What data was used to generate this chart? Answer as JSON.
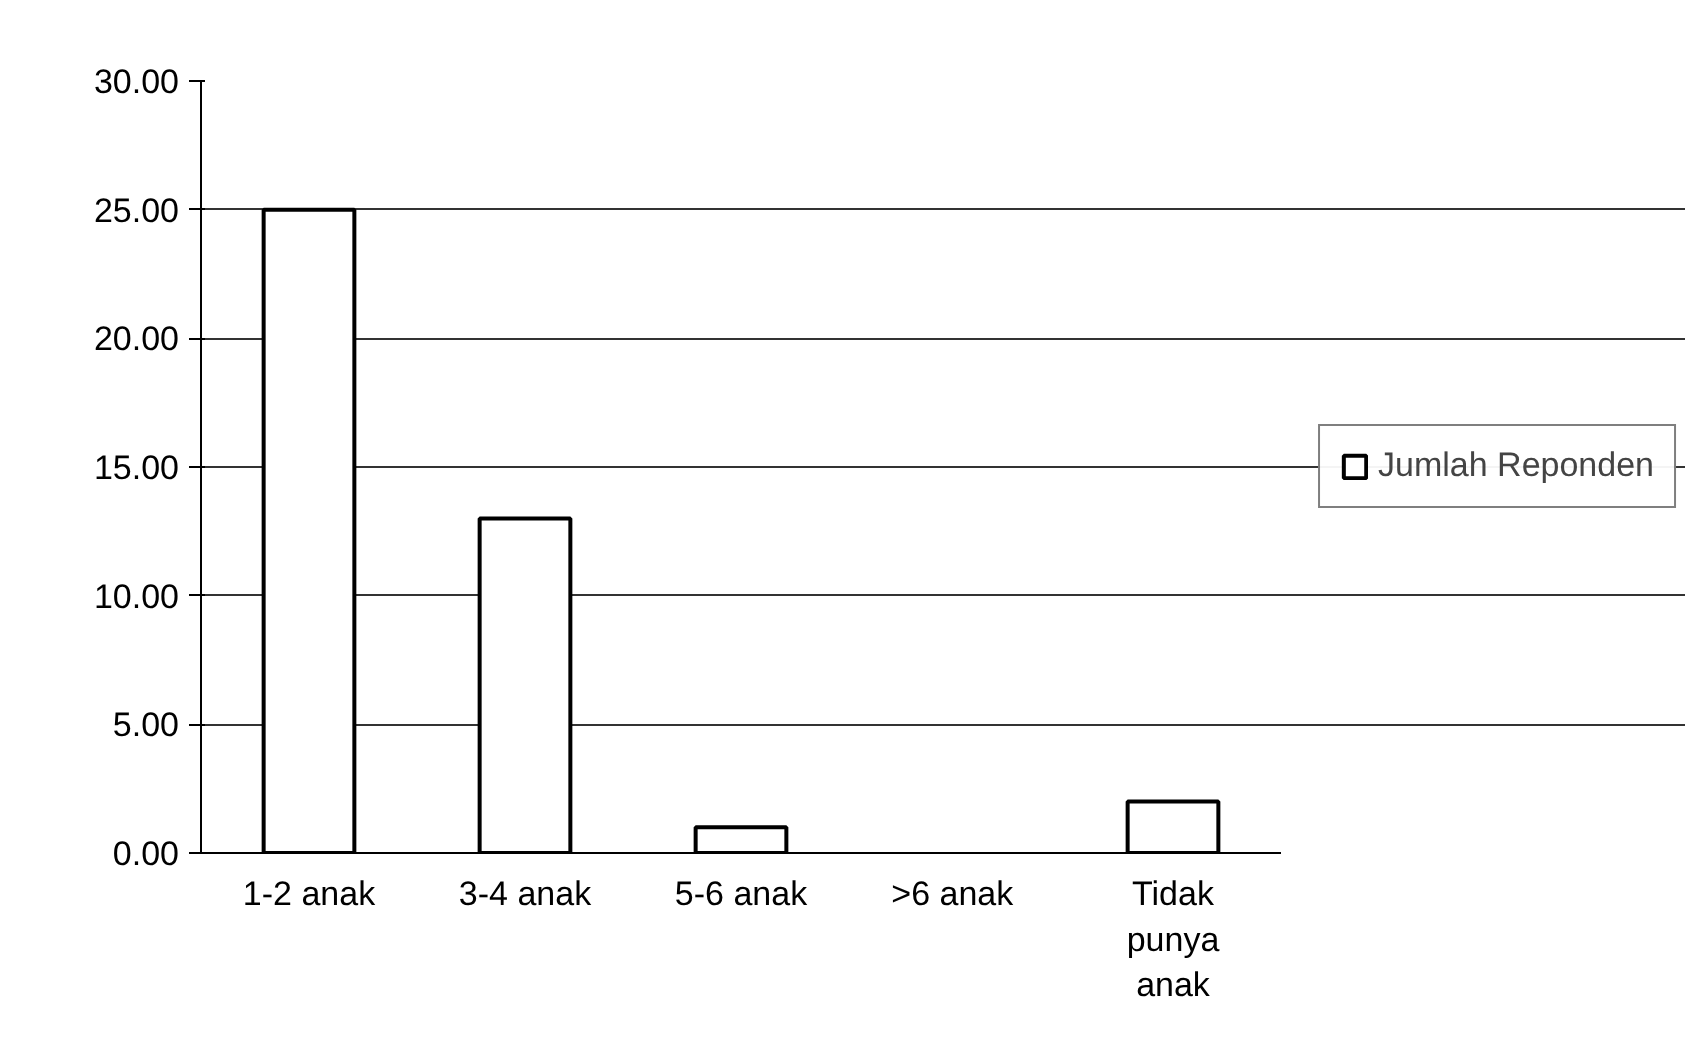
{
  "chart_data": {
    "type": "bar",
    "categories": [
      "1-2 anak",
      "3-4 anak",
      "5-6 anak",
      ">6  anak",
      "Tidak\npunya\nanak"
    ],
    "series": [
      {
        "name": "Jumlah Reponden",
        "color": "#ffffff",
        "values": [
          25,
          13,
          1,
          0,
          2
        ]
      }
    ],
    "ylim": [
      0,
      30
    ],
    "yticks": [
      {
        "value": 0,
        "label": "0.00"
      },
      {
        "value": 5,
        "label": "5.00"
      },
      {
        "value": 10,
        "label": "10.00"
      },
      {
        "value": 15,
        "label": "15.00"
      },
      {
        "value": 20,
        "label": "20.00"
      },
      {
        "value": 25,
        "label": "25.00"
      },
      {
        "value": 30,
        "label": "30.00"
      }
    ],
    "grid": "y",
    "legend": "right"
  }
}
